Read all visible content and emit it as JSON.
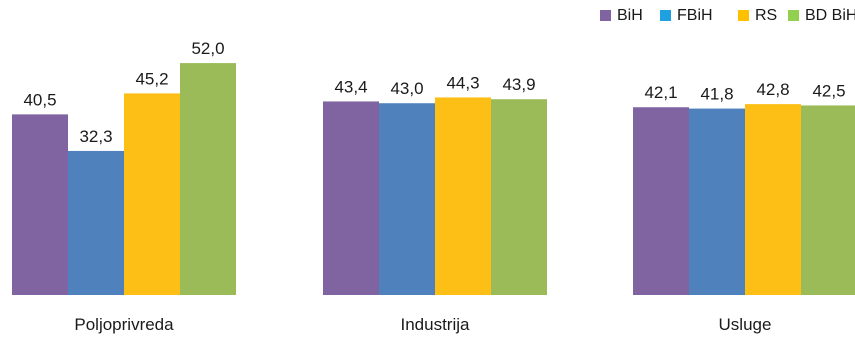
{
  "chart_data": {
    "type": "bar",
    "categories": [
      "Poljoprivreda",
      "Industrija",
      "Usluge"
    ],
    "series": [
      {
        "name": "BiH",
        "color": "#8064a2",
        "values": [
          40.5,
          43.4,
          42.1
        ],
        "labels": [
          "40,5",
          "43,4",
          "42,1"
        ]
      },
      {
        "name": "FBiH",
        "color": "#4f81bd",
        "values": [
          32.3,
          43.0,
          41.8
        ],
        "labels": [
          "32,3",
          "43,0",
          "41,8"
        ]
      },
      {
        "name": "RS",
        "color": "#fdbf16",
        "values": [
          45.2,
          44.3,
          42.8
        ],
        "labels": [
          "45,2",
          "44,3",
          "42,8"
        ]
      },
      {
        "name": "BD BiH",
        "color": "#9bbb59",
        "values": [
          52.0,
          43.9,
          42.5
        ],
        "labels": [
          "52,0",
          "43,9",
          "42,5"
        ]
      }
    ],
    "legend_colors": {
      "BiH": "#8064a2",
      "FBiH": "#1fa0e0",
      "RS": "#ffc000",
      "BD BiH": "#92d050"
    },
    "legend_position": "top-right",
    "grid": false,
    "axes_visible": false,
    "ylim": [
      0,
      52.0
    ]
  }
}
